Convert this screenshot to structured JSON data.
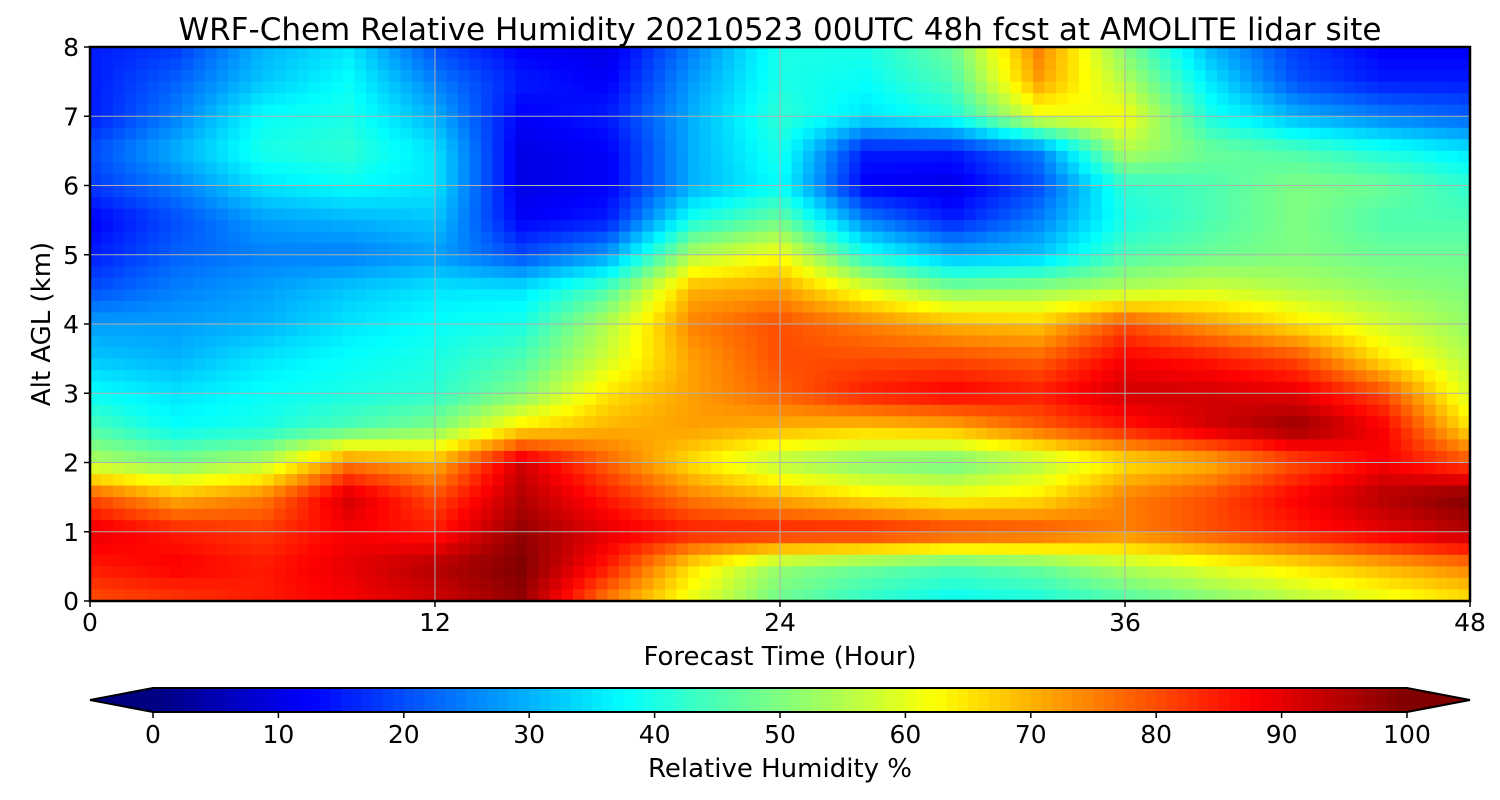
{
  "chart_data": {
    "type": "heatmap",
    "title": "WRF-Chem Relative Humidity 20210523 00UTC 48h fcst at AMOLITE lidar site",
    "xlabel": "Forecast Time (Hour)",
    "ylabel": "Alt AGL (km)",
    "xlim": [
      0,
      48
    ],
    "ylim": [
      0,
      8
    ],
    "xticks": [
      "0",
      "12",
      "24",
      "36",
      "48"
    ],
    "yticks": [
      "0",
      "1",
      "2",
      "3",
      "4",
      "5",
      "6",
      "7",
      "8"
    ],
    "grid": true,
    "colormap": "jet",
    "colorbar": {
      "label": "Relative Humidity %",
      "range": [
        0,
        100
      ],
      "extend": "both",
      "ticks": [
        "0",
        "10",
        "20",
        "30",
        "40",
        "50",
        "60",
        "70",
        "80",
        "90",
        "100"
      ]
    },
    "x": [
      0,
      3,
      6,
      9,
      12,
      15,
      18,
      21,
      24,
      27,
      30,
      33,
      36,
      39,
      42,
      45,
      48
    ],
    "y": [
      0,
      0.5,
      1,
      1.5,
      2,
      2.5,
      3,
      3.5,
      4,
      4.5,
      5,
      5.5,
      6,
      6.5,
      7,
      7.5,
      8
    ],
    "z": [
      [
        80,
        82,
        85,
        88,
        92,
        98,
        75,
        60,
        48,
        42,
        38,
        40,
        45,
        50,
        55,
        60,
        65
      ],
      [
        85,
        88,
        85,
        90,
        95,
        100,
        85,
        65,
        52,
        48,
        45,
        48,
        55,
        60,
        65,
        70,
        75
      ],
      [
        90,
        85,
        82,
        88,
        85,
        98,
        90,
        85,
        85,
        85,
        82,
        80,
        75,
        80,
        85,
        90,
        95
      ],
      [
        80,
        70,
        75,
        92,
        80,
        95,
        85,
        75,
        70,
        65,
        62,
        65,
        75,
        80,
        88,
        95,
        100
      ],
      [
        55,
        50,
        55,
        75,
        70,
        92,
        78,
        65,
        55,
        50,
        48,
        55,
        65,
        70,
        80,
        88,
        80
      ],
      [
        45,
        38,
        40,
        45,
        50,
        65,
        70,
        72,
        70,
        68,
        70,
        78,
        85,
        92,
        98,
        88,
        65
      ],
      [
        38,
        35,
        38,
        40,
        42,
        50,
        65,
        72,
        78,
        85,
        88,
        85,
        92,
        92,
        90,
        80,
        58
      ],
      [
        32,
        30,
        35,
        38,
        40,
        45,
        58,
        72,
        80,
        80,
        80,
        78,
        88,
        85,
        80,
        65,
        55
      ],
      [
        28,
        28,
        30,
        35,
        38,
        40,
        55,
        75,
        80,
        75,
        70,
        68,
        80,
        72,
        65,
        58,
        52
      ],
      [
        20,
        25,
        28,
        32,
        35,
        35,
        45,
        70,
        72,
        60,
        50,
        52,
        55,
        58,
        55,
        52,
        50
      ],
      [
        15,
        22,
        25,
        25,
        28,
        20,
        28,
        55,
        62,
        40,
        30,
        32,
        45,
        48,
        50,
        48,
        48
      ],
      [
        12,
        20,
        28,
        30,
        32,
        12,
        15,
        40,
        48,
        25,
        15,
        25,
        40,
        45,
        50,
        45,
        45
      ],
      [
        18,
        25,
        35,
        38,
        35,
        10,
        12,
        30,
        38,
        12,
        10,
        20,
        42,
        45,
        50,
        48,
        42
      ],
      [
        20,
        30,
        40,
        42,
        35,
        10,
        12,
        30,
        40,
        15,
        15,
        25,
        55,
        48,
        45,
        40,
        35
      ],
      [
        15,
        25,
        38,
        40,
        30,
        12,
        15,
        30,
        42,
        35,
        40,
        60,
        62,
        40,
        30,
        25,
        22
      ],
      [
        15,
        22,
        32,
        38,
        25,
        15,
        12,
        28,
        40,
        38,
        45,
        72,
        55,
        35,
        20,
        15,
        15
      ],
      [
        15,
        18,
        30,
        35,
        20,
        12,
        10,
        25,
        40,
        40,
        48,
        75,
        50,
        30,
        18,
        12,
        12
      ]
    ]
  }
}
